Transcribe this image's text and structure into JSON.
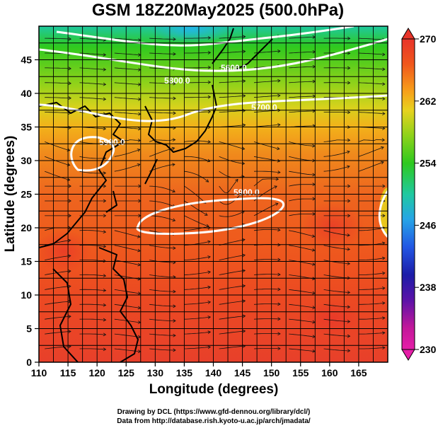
{
  "chart_data": {
    "type": "heatmap",
    "title": "GSM 18Z20May2025 (500.0hPa)",
    "xlabel": "Longitude (degrees)",
    "ylabel": "Latitude  (degrees)",
    "xlim": [
      110,
      170
    ],
    "ylim": [
      0,
      50
    ],
    "xticks": [
      "110",
      "115",
      "120",
      "125",
      "130",
      "135",
      "140",
      "145",
      "150",
      "155",
      "160",
      "165"
    ],
    "yticks": [
      "0",
      "5",
      "10",
      "15",
      "20",
      "25",
      "30",
      "35",
      "40",
      "45"
    ],
    "colorbar": {
      "min": 230,
      "max": 270,
      "labels": [
        "270",
        "262",
        "254",
        "246",
        "238",
        "230"
      ],
      "colors": [
        "#e8342a",
        "#f0561c",
        "#f7a11a",
        "#e7d21f",
        "#8fd21a",
        "#2ec91f",
        "#1fc9a0",
        "#26a5e6",
        "#2257e4",
        "#1c1ca8",
        "#5a12a8",
        "#c2189a",
        "#e61fa8"
      ]
    },
    "contours": [
      {
        "label": "5900.0",
        "lon": 142,
        "lat": 24
      },
      {
        "label": "5900.0",
        "lon": 115,
        "lat": 32
      },
      {
        "label": "5800.0",
        "lon": 135,
        "lat": 43
      },
      {
        "label": "5700.0",
        "lon": 150,
        "lat": 40
      },
      {
        "label": "5600.0",
        "lon": 142,
        "lat": 46
      }
    ],
    "field_temperatures": [
      {
        "lat": 47,
        "lon": 135,
        "value": 248
      },
      {
        "lat": 43,
        "lon": 140,
        "value": 253
      },
      {
        "lat": 38,
        "lon": 140,
        "value": 258
      },
      {
        "lat": 32,
        "lon": 140,
        "value": 262
      },
      {
        "lat": 24,
        "lon": 142,
        "value": 265
      },
      {
        "lat": 20,
        "lon": 115,
        "value": 267
      },
      {
        "lat": 10,
        "lon": 140,
        "value": 266
      }
    ]
  },
  "credits": {
    "line1": "Drawing by DCL (https://www.gfd-dennou.org/library/dcl/)",
    "line2": "Data from http://database.rish.kyoto-u.ac.jp/arch/jmadata/"
  }
}
